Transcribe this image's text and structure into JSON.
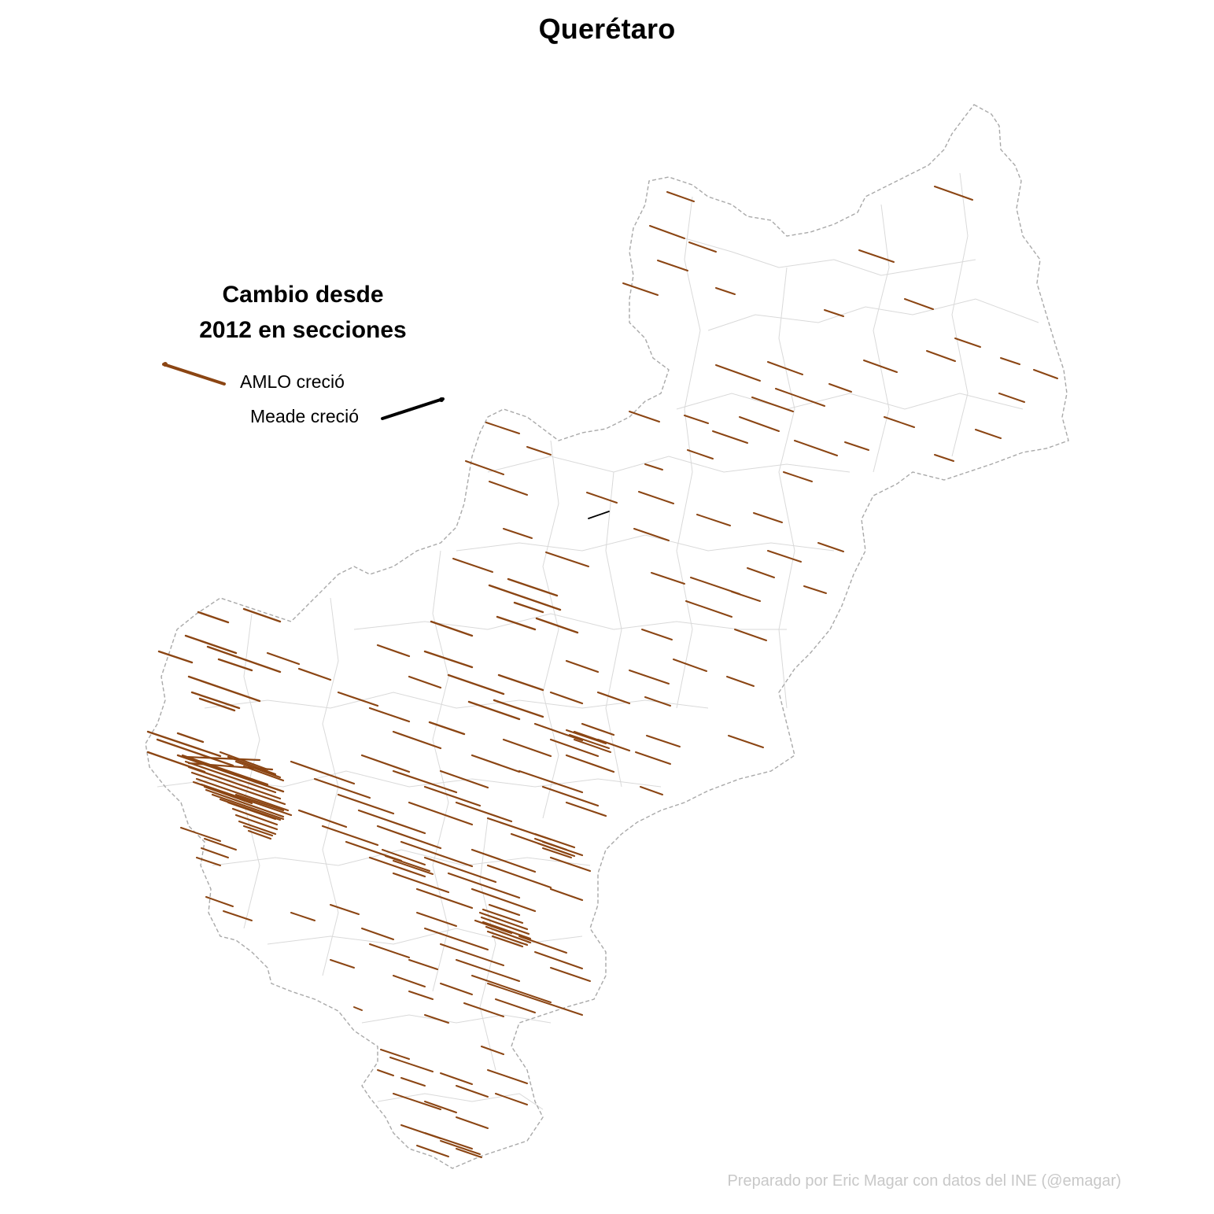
{
  "title": "Querétaro",
  "legend": {
    "title_line1": "Cambio desde",
    "title_line2": "2012 en secciones",
    "items": [
      {
        "label": "AMLO creció",
        "color": "#8b4513"
      },
      {
        "label": "Meade creció",
        "color": "#000000"
      }
    ]
  },
  "caption": "Preparado por Eric Magar con datos del INE (@emagar)",
  "colors": {
    "amlo": "#8b4513",
    "meade": "#000000",
    "state_border": "#a9a9a9",
    "section_border": "#d9d9d9"
  }
}
